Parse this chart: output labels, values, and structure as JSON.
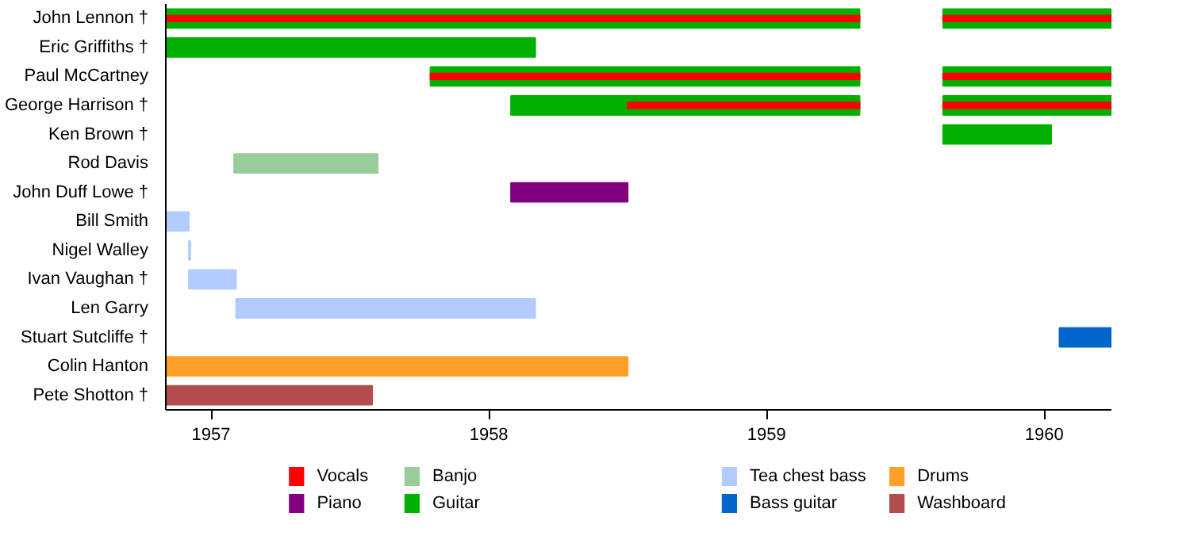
{
  "chart_data": {
    "type": "bar",
    "orientation": "horizontal",
    "categories": [
      "John Lennon †",
      "Eric Griffiths †",
      "Paul McCartney",
      "George Harrison †",
      "Ken Brown †",
      "Rod Davis",
      "John Duff Lowe †",
      "Bill Smith",
      "Nigel Walley",
      "Ivan Vaughan †",
      "Len Garry",
      "Stuart Sutcliffe †",
      "Colin Hanton",
      "Pete Shotton †"
    ],
    "xlim": [
      1956.837,
      1960.242
    ],
    "xticks": [
      1957,
      1958,
      1959,
      1960
    ],
    "grid": false,
    "legend": "bottom",
    "series": [
      {
        "name": "Vocals",
        "color": "#ff0000",
        "base": [
          1956.837,
          null,
          1957.79,
          1958.5,
          null,
          null,
          null,
          null,
          null,
          null,
          null,
          null,
          null,
          null
        ],
        "values": [
          2.498,
          null,
          1.545,
          0.835,
          null,
          null,
          null,
          null,
          null,
          null,
          null,
          null,
          null,
          null
        ]
      },
      {
        "name": "Piano",
        "color": "#800080",
        "base": [
          null,
          null,
          null,
          null,
          null,
          null,
          1958.08,
          null,
          null,
          null,
          null,
          null,
          null,
          null
        ],
        "values": [
          null,
          null,
          null,
          null,
          null,
          null,
          0.42,
          null,
          null,
          null,
          null,
          null,
          null,
          null
        ]
      },
      {
        "name": "Banjo",
        "color": "#99cc99",
        "base": [
          null,
          null,
          null,
          null,
          null,
          1957.083,
          null,
          null,
          null,
          null,
          null,
          null,
          null,
          null
        ],
        "values": [
          null,
          null,
          null,
          null,
          null,
          0.517,
          null,
          null,
          null,
          null,
          null,
          null,
          null,
          null
        ]
      },
      {
        "name": "Guitar",
        "color": "#00b000",
        "base": [
          1956.837,
          1956.837,
          1957.79,
          1958.08,
          1959.636,
          null,
          null,
          null,
          null,
          null,
          null,
          null,
          null,
          null
        ],
        "values": [
          2.498,
          1.33,
          1.545,
          1.255,
          0.389,
          null,
          null,
          null,
          null,
          null,
          null,
          null,
          null,
          null
        ]
      },
      {
        "name": "Tea chest bass",
        "color": "#b3ccff",
        "base": [
          null,
          null,
          null,
          null,
          null,
          null,
          null,
          1956.837,
          1956.92,
          1956.92,
          1957.09,
          null,
          null,
          null
        ],
        "values": [
          null,
          null,
          null,
          null,
          null,
          null,
          null,
          0.083,
          0.005,
          0.17,
          1.077,
          null,
          null,
          null
        ]
      },
      {
        "name": "Bass guitar",
        "color": "#0066cc",
        "base": [
          null,
          null,
          null,
          null,
          null,
          null,
          null,
          null,
          null,
          null,
          null,
          1960.055,
          null,
          null
        ],
        "values": [
          null,
          null,
          null,
          null,
          null,
          null,
          null,
          null,
          null,
          null,
          null,
          0.187,
          null,
          null
        ]
      },
      {
        "name": "Drums",
        "color": "#ffa126",
        "base": [
          null,
          null,
          null,
          null,
          null,
          null,
          null,
          null,
          null,
          null,
          null,
          null,
          1956.837,
          null
        ],
        "values": [
          null,
          null,
          null,
          null,
          null,
          null,
          null,
          null,
          null,
          null,
          null,
          null,
          1.663,
          null
        ]
      },
      {
        "name": "Washboard",
        "color": "#b34d4d",
        "base": [
          null,
          null,
          null,
          null,
          null,
          null,
          null,
          null,
          null,
          null,
          null,
          null,
          null,
          1956.837
        ],
        "values": [
          null,
          null,
          null,
          null,
          null,
          null,
          null,
          null,
          null,
          null,
          null,
          null,
          null,
          0.743
        ]
      },
      {
        "color": "#ff0000",
        "base": [
          1959.636,
          null,
          1959.636,
          1959.636,
          null,
          null,
          null,
          null,
          null,
          null,
          null,
          null,
          null,
          null
        ],
        "values": [
          0.606,
          null,
          0.606,
          0.606,
          null,
          null,
          null,
          null,
          null,
          null,
          null,
          null,
          null,
          null
        ]
      },
      {
        "color": "#00b000",
        "base": [
          1959.636,
          null,
          1959.636,
          1959.636,
          null,
          null,
          null,
          null,
          null,
          null,
          null,
          null,
          null,
          null
        ],
        "values": [
          0.606,
          null,
          0.606,
          0.606,
          null,
          null,
          null,
          null,
          null,
          null,
          null,
          null,
          null,
          null
        ]
      }
    ]
  }
}
